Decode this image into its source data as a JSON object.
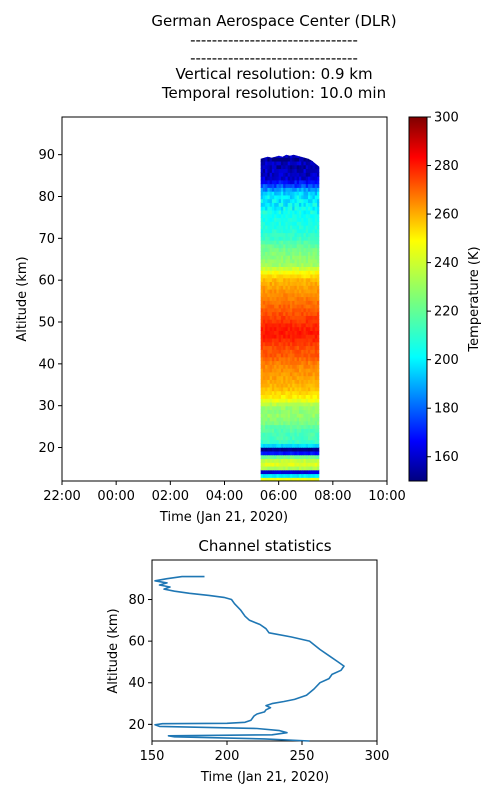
{
  "header": {
    "title": "German Aerospace Center (DLR)",
    "separator_1": "-------------------------------",
    "separator_2": "-------------------------------",
    "vertical_resolution": "Vertical resolution: 0.9 km",
    "temporal_resolution": "Temporal resolution: 10.0 min"
  },
  "chart_data": [
    {
      "type": "heatmap",
      "title": "",
      "xlabel": "Time (Jan 21, 2020)",
      "ylabel": "Altitude (km)",
      "x_ticks": [
        "22:00",
        "00:00",
        "02:00",
        "04:00",
        "06:00",
        "08:00",
        "10:00"
      ],
      "x_range": [
        "22:00",
        "10:00"
      ],
      "y_ticks": [
        20,
        30,
        40,
        50,
        60,
        70,
        80,
        90
      ],
      "ylim": [
        12,
        99
      ],
      "colorbar": {
        "label": "Temperature (K)",
        "colormap": "jet",
        "range": [
          150,
          300
        ],
        "ticks": [
          160,
          180,
          200,
          220,
          240,
          260,
          280,
          300
        ]
      },
      "data_window": {
        "time_start": "05:20",
        "time_end": "07:30",
        "altitude_bottom": 12,
        "altitude_top": 90
      },
      "profile_source": "same as channel statistics profile"
    },
    {
      "type": "line",
      "title": "Channel statistics",
      "xlabel": "Time (Jan 21, 2020)",
      "ylabel": "Altitude (km)",
      "xlim": [
        150,
        300
      ],
      "ylim": [
        12,
        99
      ],
      "x_ticks": [
        150,
        200,
        250,
        300
      ],
      "y_ticks": [
        20,
        40,
        60,
        80
      ],
      "line_color": "#1f77b4",
      "points": [
        [
          255,
          12
        ],
        [
          225,
          13
        ],
        [
          165,
          14
        ],
        [
          161,
          14.5
        ],
        [
          230,
          15
        ],
        [
          240,
          16
        ],
        [
          235,
          17
        ],
        [
          220,
          18
        ],
        [
          155,
          19
        ],
        [
          152,
          19.8
        ],
        [
          157,
          20.3
        ],
        [
          200,
          20.5
        ],
        [
          212,
          21
        ],
        [
          216,
          22
        ],
        [
          218,
          24
        ],
        [
          220,
          25
        ],
        [
          225,
          26
        ],
        [
          226,
          27
        ],
        [
          229,
          28
        ],
        [
          226,
          29
        ],
        [
          230,
          30
        ],
        [
          238,
          31
        ],
        [
          245,
          32
        ],
        [
          253,
          34
        ],
        [
          258,
          37
        ],
        [
          262,
          40
        ],
        [
          268,
          42
        ],
        [
          270,
          44
        ],
        [
          276,
          46
        ],
        [
          278,
          48
        ],
        [
          274,
          50
        ],
        [
          268,
          53
        ],
        [
          262,
          56
        ],
        [
          255,
          60
        ],
        [
          243,
          62
        ],
        [
          228,
          64
        ],
        [
          226,
          66
        ],
        [
          222,
          68
        ],
        [
          215,
          70
        ],
        [
          212,
          72
        ],
        [
          209,
          75
        ],
        [
          205,
          78
        ],
        [
          203,
          80
        ],
        [
          198,
          81
        ],
        [
          188,
          82
        ],
        [
          175,
          83
        ],
        [
          165,
          84
        ],
        [
          158,
          85
        ],
        [
          162,
          86
        ],
        [
          155,
          87
        ],
        [
          160,
          88
        ],
        [
          152,
          89
        ],
        [
          160,
          90
        ],
        [
          170,
          91
        ],
        [
          185,
          91
        ]
      ]
    }
  ]
}
